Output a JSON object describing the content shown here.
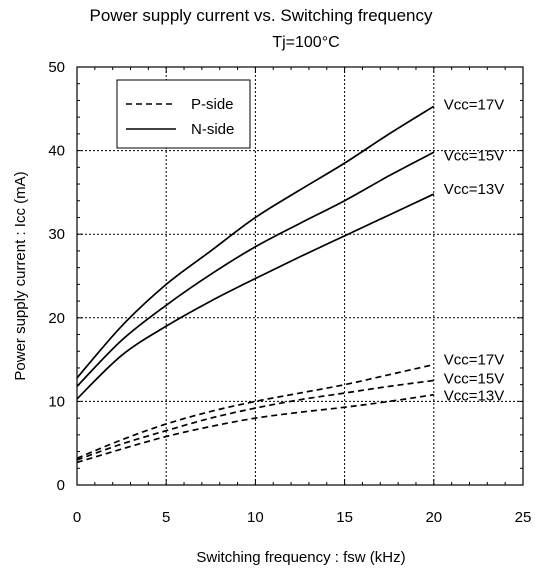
{
  "chart_data": {
    "type": "line",
    "title": "Power supply current vs. Switching frequency",
    "subtitle": "Tj=100°C",
    "xlabel": "Switching frequency : fsw (kHz)",
    "ylabel": "Power supply current : Icc (mA)",
    "xlim": [
      0,
      25
    ],
    "ylim": [
      0,
      50
    ],
    "xticks": [
      0,
      5,
      10,
      15,
      20,
      25
    ],
    "yticks": [
      0,
      10,
      20,
      30,
      40,
      50
    ],
    "xtick_labels": [
      "0",
      "5",
      "10",
      "15",
      "20",
      "25"
    ],
    "ytick_labels": [
      "0",
      "10",
      "20",
      "30",
      "40",
      "50"
    ],
    "grid": true,
    "legend": {
      "position": "top-left",
      "entries": [
        {
          "label": "P-side",
          "style": "dashed"
        },
        {
          "label": "N-side",
          "style": "solid"
        }
      ]
    },
    "x": [
      0,
      2.5,
      5,
      7.5,
      10,
      12.5,
      15,
      17.5,
      20
    ],
    "series": [
      {
        "name": "N-side",
        "style": "solid",
        "annotation": "Vcc=17V",
        "values": [
          12.8,
          19.0,
          24.0,
          28.0,
          32.0,
          35.3,
          38.5,
          42.0,
          45.3
        ]
      },
      {
        "name": "N-side",
        "style": "solid",
        "annotation": "Vcc=15V",
        "values": [
          11.8,
          17.3,
          21.5,
          25.2,
          28.5,
          31.3,
          34.0,
          37.0,
          39.8
        ]
      },
      {
        "name": "N-side",
        "style": "solid",
        "annotation": "Vcc=13V",
        "values": [
          10.3,
          15.5,
          19.0,
          22.0,
          24.7,
          27.3,
          29.8,
          32.3,
          34.8
        ]
      },
      {
        "name": "P-side",
        "style": "dashed",
        "annotation": "Vcc=17V",
        "values": [
          3.2,
          5.4,
          7.3,
          8.8,
          10.0,
          11.0,
          12.0,
          13.2,
          14.4
        ]
      },
      {
        "name": "P-side",
        "style": "dashed",
        "annotation": "Vcc=15V",
        "values": [
          3.0,
          4.9,
          6.5,
          8.0,
          9.2,
          10.2,
          11.0,
          11.8,
          12.5
        ]
      },
      {
        "name": "P-side",
        "style": "dashed",
        "annotation": "Vcc=13V",
        "values": [
          2.7,
          4.3,
          5.8,
          7.0,
          8.0,
          8.7,
          9.3,
          10.0,
          10.8
        ]
      }
    ],
    "line_color": "#000000",
    "background": "#ffffff"
  }
}
